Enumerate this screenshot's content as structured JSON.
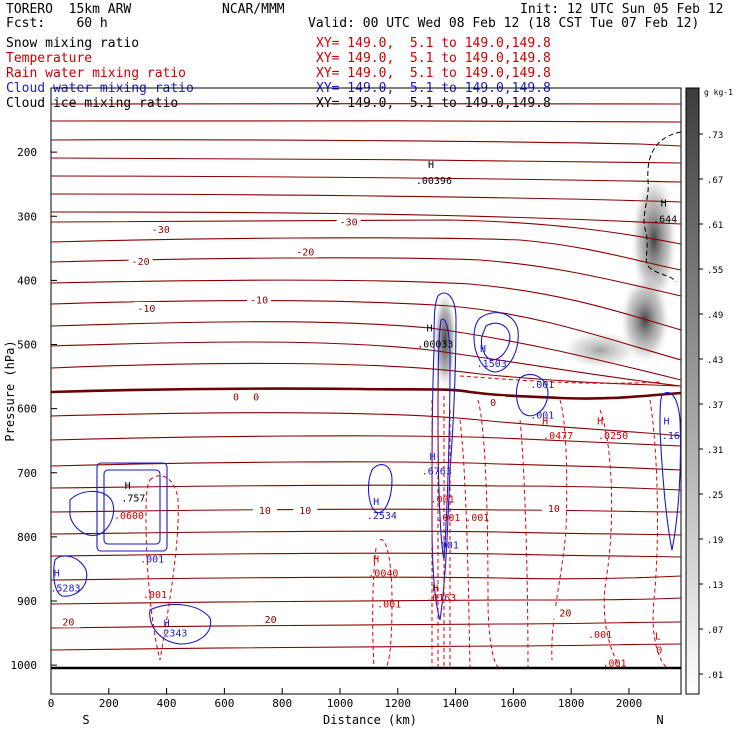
{
  "header": {
    "model": "TORERO  15km ARW",
    "forecast": "Fcst:    60 h",
    "org": "NCAR/MMM",
    "init": "Init: 12 UTC Sun 05 Feb 12",
    "valid": "Valid: 00 UTC Wed 08 Feb 12 (18 CST Tue 07 Feb 12)"
  },
  "legend": [
    {
      "label": "Snow mixing ratio",
      "xy": "XY= 149.0,  5.1 to 149.0,149.8",
      "color": "#000000"
    },
    {
      "label": "Temperature",
      "xy": "XY= 149.0,  5.1 to 149.0,149.8",
      "color": "#cc0000"
    },
    {
      "label": "Rain water mixing ratio",
      "xy": "XY= 149.0,  5.1 to 149.0,149.8",
      "color": "#cc0000"
    },
    {
      "label": "Cloud water mixing ratio",
      "xy": "XY= 149.0,  5.1 to 149.0,149.8",
      "color": "#1a1acc"
    },
    {
      "label": "Cloud ice mixing ratio",
      "xy": "XY= 149.0,  5.1 to 149.0,149.8",
      "color": "#000000"
    }
  ],
  "colors": {
    "temperature": "#8b0000",
    "zero_isotherm": "#6b0000",
    "rain": "#dd0000",
    "cloud_water": "#1a1acc",
    "snow_shade": "#444444"
  },
  "chart_data": {
    "type": "contour-cross-section",
    "xlabel": "Distance (km)",
    "ylabel": "Pressure (hPa)",
    "x_ticks": [
      0,
      200,
      400,
      600,
      800,
      1000,
      1200,
      1400,
      1600,
      1800,
      2000
    ],
    "y_ticks": [
      200,
      300,
      400,
      500,
      600,
      700,
      800,
      900,
      1000
    ],
    "xlim": [
      0,
      2180
    ],
    "ylim": [
      1045,
      100
    ],
    "x_end_labels": {
      "left": "S",
      "right": "N"
    },
    "colorbar": {
      "units": "g kg-1",
      "ticks": [
        ".01",
        ".07",
        ".13",
        ".19",
        ".25",
        ".31",
        ".37",
        ".43",
        ".49",
        ".55",
        ".61",
        ".67",
        ".73"
      ]
    },
    "temperature_labels": [
      {
        "text": "-30",
        "x": 380,
        "p": 320
      },
      {
        "text": "-30",
        "x": 1030,
        "p": 308
      },
      {
        "text": "-20",
        "x": 310,
        "p": 370
      },
      {
        "text": "-20",
        "x": 880,
        "p": 355
      },
      {
        "text": "-10",
        "x": 330,
        "p": 443
      },
      {
        "text": "-10",
        "x": 720,
        "p": 430
      },
      {
        "text": "0",
        "x": 640,
        "p": 581
      },
      {
        "text": "0",
        "x": 710,
        "p": 581
      },
      {
        "text": "0",
        "x": 1530,
        "p": 590
      },
      {
        "text": "10",
        "x": 740,
        "p": 758
      },
      {
        "text": "10",
        "x": 880,
        "p": 758
      },
      {
        "text": "10",
        "x": 1740,
        "p": 755
      },
      {
        "text": "20",
        "x": 60,
        "p": 932
      },
      {
        "text": "20",
        "x": 760,
        "p": 928
      },
      {
        "text": "20",
        "x": 1780,
        "p": 918
      }
    ],
    "annotations": [
      {
        "text": "H",
        "x": 1315,
        "p": 225,
        "color": "#000000"
      },
      {
        "text": ".00396",
        "x": 1325,
        "p": 250,
        "color": "#000000"
      },
      {
        "text": "H",
        "x": 2120,
        "p": 285,
        "color": "#000000"
      },
      {
        "text": ".644",
        "x": 2125,
        "p": 310,
        "color": "#000000"
      },
      {
        "text": "H",
        "x": 1310,
        "p": 480,
        "color": "#000000"
      },
      {
        "text": ".00033",
        "x": 1330,
        "p": 505,
        "color": "#000000"
      },
      {
        "text": "H",
        "x": 1495,
        "p": 512,
        "color": "#1a1acc"
      },
      {
        "text": ".1503",
        "x": 1525,
        "p": 535,
        "color": "#1a1acc"
      },
      {
        "text": ".001",
        "x": 1700,
        "p": 568,
        "color": "#1a1acc"
      },
      {
        "text": ".001",
        "x": 1700,
        "p": 615,
        "color": "#1a1acc"
      },
      {
        "text": "H",
        "x": 1710,
        "p": 625,
        "color": "#cc0000"
      },
      {
        "text": ".0477",
        "x": 1755,
        "p": 647,
        "color": "#cc0000"
      },
      {
        "text": "H",
        "x": 1900,
        "p": 625,
        "color": "#cc0000"
      },
      {
        "text": ".0250",
        "x": 1945,
        "p": 647,
        "color": "#cc0000"
      },
      {
        "text": "H",
        "x": 2130,
        "p": 625,
        "color": "#1a1acc"
      },
      {
        "text": ".16",
        "x": 2145,
        "p": 647,
        "color": "#1a1acc"
      },
      {
        "text": "H",
        "x": 1320,
        "p": 680,
        "color": "#1a1acc"
      },
      {
        "text": ".6763",
        "x": 1335,
        "p": 703,
        "color": "#1a1acc"
      },
      {
        "text": "H",
        "x": 265,
        "p": 725,
        "color": "#000000"
      },
      {
        "text": ".757",
        "x": 285,
        "p": 745,
        "color": "#000000"
      },
      {
        "text": ".0600",
        "x": 270,
        "p": 772,
        "color": "#cc0000"
      },
      {
        "text": ".001",
        "x": 1355,
        "p": 746,
        "color": "#cc0000"
      },
      {
        "text": ".001",
        "x": 1475,
        "p": 775,
        "color": "#cc0000"
      },
      {
        "text": ".001",
        "x": 1375,
        "p": 775,
        "color": "#cc0000"
      },
      {
        "text": "H",
        "x": 1125,
        "p": 750,
        "color": "#1a1acc"
      },
      {
        "text": ".2534",
        "x": 1145,
        "p": 772,
        "color": "#1a1acc"
      },
      {
        "text": ".001",
        "x": 1370,
        "p": 818,
        "color": "#1a1acc"
      },
      {
        "text": ".001",
        "x": 350,
        "p": 840,
        "color": "#1a1acc"
      },
      {
        "text": "H",
        "x": 1125,
        "p": 840,
        "color": "#cc0000"
      },
      {
        "text": ".0040",
        "x": 1150,
        "p": 862,
        "color": "#cc0000"
      },
      {
        "text": "H",
        "x": 20,
        "p": 862,
        "color": "#1a1acc"
      },
      {
        "text": ".5283",
        "x": 50,
        "p": 885,
        "color": "#1a1acc"
      },
      {
        "text": ".001",
        "x": 360,
        "p": 895,
        "color": "#cc0000"
      },
      {
        "text": "H",
        "x": 1330,
        "p": 885,
        "color": "#cc0000"
      },
      {
        "text": ".0163",
        "x": 1350,
        "p": 900,
        "color": "#cc0000"
      },
      {
        "text": ".001",
        "x": 1170,
        "p": 910,
        "color": "#cc0000"
      },
      {
        "text": "H",
        "x": 400,
        "p": 940,
        "color": "#1a1acc"
      },
      {
        "text": ".2343",
        "x": 420,
        "p": 955,
        "color": "#1a1acc"
      },
      {
        "text": ".001",
        "x": 1900,
        "p": 958,
        "color": "#cc0000"
      },
      {
        "text": "L",
        "x": 2100,
        "p": 960,
        "color": "#cc0000"
      },
      {
        "text": "0",
        "x": 2105,
        "p": 982,
        "color": "#cc0000"
      },
      {
        "text": ".001",
        "x": 1950,
        "p": 1002,
        "color": "#cc0000"
      }
    ]
  }
}
